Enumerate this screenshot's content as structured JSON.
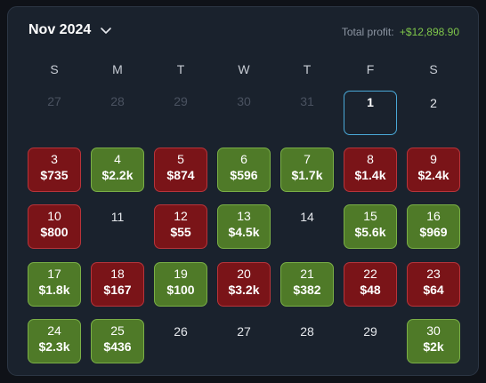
{
  "header": {
    "month": "Nov 2024",
    "profit_label": "Total profit:",
    "profit_value": "+$12,898.90"
  },
  "weekdays": [
    "S",
    "M",
    "T",
    "W",
    "T",
    "F",
    "S"
  ],
  "weeks": [
    [
      {
        "day": "27",
        "type": "muted"
      },
      {
        "day": "28",
        "type": "muted"
      },
      {
        "day": "29",
        "type": "muted"
      },
      {
        "day": "30",
        "type": "muted"
      },
      {
        "day": "31",
        "type": "muted"
      },
      {
        "day": "1",
        "type": "today"
      },
      {
        "day": "2",
        "type": "plain"
      }
    ],
    [
      {
        "day": "3",
        "type": "loss",
        "amount": "$735"
      },
      {
        "day": "4",
        "type": "gain",
        "amount": "$2.2k"
      },
      {
        "day": "5",
        "type": "loss",
        "amount": "$874"
      },
      {
        "day": "6",
        "type": "gain",
        "amount": "$596"
      },
      {
        "day": "7",
        "type": "gain",
        "amount": "$1.7k"
      },
      {
        "day": "8",
        "type": "loss",
        "amount": "$1.4k"
      },
      {
        "day": "9",
        "type": "loss",
        "amount": "$2.4k"
      }
    ],
    [
      {
        "day": "10",
        "type": "loss",
        "amount": "$800"
      },
      {
        "day": "11",
        "type": "plain"
      },
      {
        "day": "12",
        "type": "loss",
        "amount": "$55"
      },
      {
        "day": "13",
        "type": "gain",
        "amount": "$4.5k"
      },
      {
        "day": "14",
        "type": "plain"
      },
      {
        "day": "15",
        "type": "gain",
        "amount": "$5.6k"
      },
      {
        "day": "16",
        "type": "gain",
        "amount": "$969"
      }
    ],
    [
      {
        "day": "17",
        "type": "gain",
        "amount": "$1.8k"
      },
      {
        "day": "18",
        "type": "loss",
        "amount": "$167"
      },
      {
        "day": "19",
        "type": "gain",
        "amount": "$100"
      },
      {
        "day": "20",
        "type": "loss",
        "amount": "$3.2k"
      },
      {
        "day": "21",
        "type": "gain",
        "amount": "$382"
      },
      {
        "day": "22",
        "type": "loss",
        "amount": "$48"
      },
      {
        "day": "23",
        "type": "loss",
        "amount": "$64"
      }
    ],
    [
      {
        "day": "24",
        "type": "gain",
        "amount": "$2.3k"
      },
      {
        "day": "25",
        "type": "gain",
        "amount": "$436"
      },
      {
        "day": "26",
        "type": "plain"
      },
      {
        "day": "27",
        "type": "plain"
      },
      {
        "day": "28",
        "type": "plain"
      },
      {
        "day": "29",
        "type": "plain"
      },
      {
        "day": "30",
        "type": "gain",
        "amount": "$2k"
      }
    ]
  ],
  "colors": {
    "loss_bg": "#7a1418",
    "gain_bg": "#4f7a28",
    "profit_text": "#7fc74a",
    "today_border": "#4aa9d8"
  },
  "icons": {
    "month_dropdown": "chevron-down-icon"
  }
}
